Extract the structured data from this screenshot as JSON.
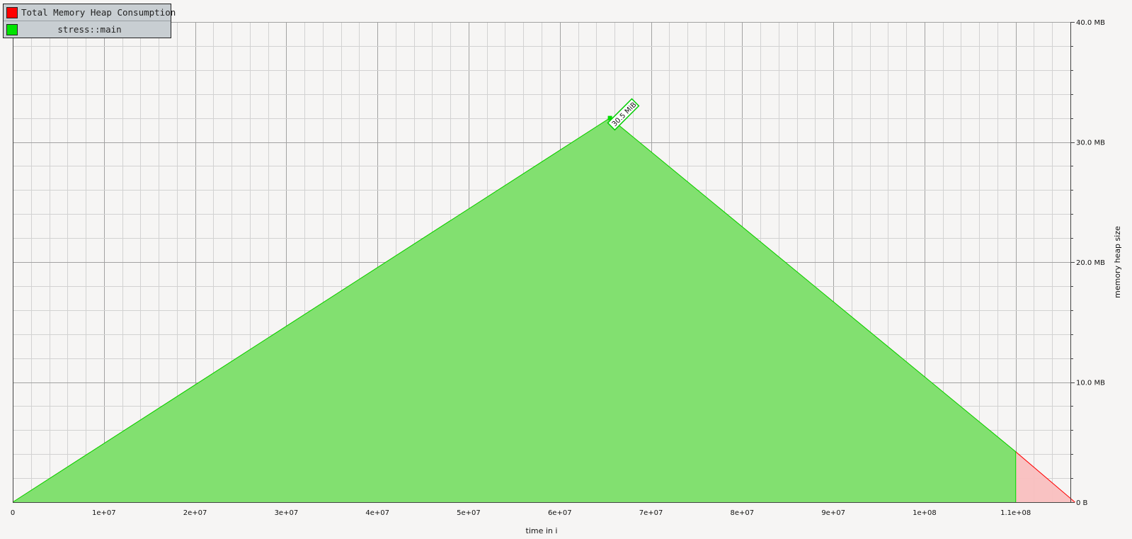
{
  "chart_data": {
    "type": "area",
    "title": "",
    "xlabel": "time in i",
    "ylabel": "memory heap size",
    "xlim": [
      0,
      116000000
    ],
    "ylim": [
      0,
      40
    ],
    "x_ticks": [
      {
        "value": 0,
        "label": "0"
      },
      {
        "value": 10000000,
        "label": "1e+07"
      },
      {
        "value": 20000000,
        "label": "2e+07"
      },
      {
        "value": 30000000,
        "label": "3e+07"
      },
      {
        "value": 40000000,
        "label": "4e+07"
      },
      {
        "value": 50000000,
        "label": "5e+07"
      },
      {
        "value": 60000000,
        "label": "6e+07"
      },
      {
        "value": 70000000,
        "label": "7e+07"
      },
      {
        "value": 80000000,
        "label": "8e+07"
      },
      {
        "value": 90000000,
        "label": "9e+07"
      },
      {
        "value": 100000000,
        "label": "1e+08"
      },
      {
        "value": 110000000,
        "label": "1.1e+08"
      }
    ],
    "y_ticks": [
      {
        "value": 0,
        "label": "0 B"
      },
      {
        "value": 10,
        "label": "10.0 MB"
      },
      {
        "value": 20,
        "label": "20.0 MB"
      },
      {
        "value": 30,
        "label": "30.0 MB"
      },
      {
        "value": 40,
        "label": "40.0 MB"
      }
    ],
    "grid": true,
    "legend_position": "top-left",
    "series": [
      {
        "name": "Total Memory Heap Consumption",
        "color": "#ff0000",
        "fill": "#f9bfbf",
        "x": [
          0,
          65500000,
          110000000,
          116500000
        ],
        "y": [
          0,
          32.0,
          4.2,
          0
        ]
      },
      {
        "name": "stress::main",
        "color": "#00dd00",
        "fill": "#7be26b",
        "x": [
          0,
          65500000,
          110000000,
          110000000
        ],
        "y": [
          0,
          32.0,
          4.2,
          0
        ]
      }
    ],
    "annotations": [
      {
        "text": "30.5 MiB",
        "x": 65500000,
        "y": 32.0,
        "series": "stress::main"
      }
    ]
  }
}
